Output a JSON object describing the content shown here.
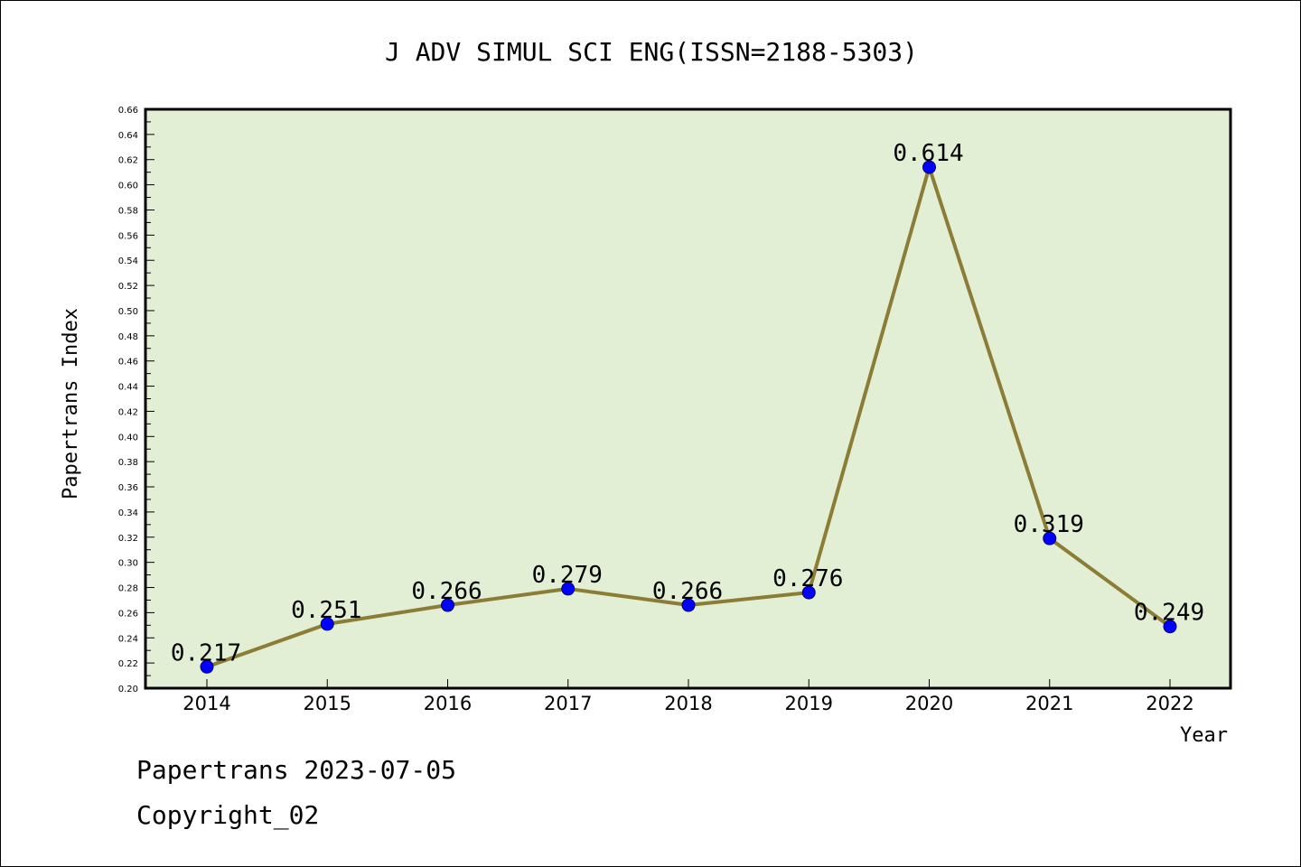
{
  "footer": {
    "line1": "Papertrans 2023-07-05",
    "line2": "Copyright_02"
  },
  "colors": {
    "plot_bg": "#e2efd5",
    "line": "#8c7d36",
    "marker": "#0000ff"
  },
  "chart_data": {
    "type": "line",
    "title": "J ADV SIMUL SCI ENG(ISSN=2188-5303)",
    "xlabel": "Year",
    "ylabel": "Papertrans Index",
    "categories": [
      "2014",
      "2015",
      "2016",
      "2017",
      "2018",
      "2019",
      "2020",
      "2021",
      "2022"
    ],
    "values": [
      0.217,
      0.251,
      0.266,
      0.279,
      0.266,
      0.276,
      0.614,
      0.319,
      0.249
    ],
    "data_labels": [
      "0.217",
      "0.251",
      "0.266",
      "0.279",
      "0.266",
      "0.276",
      "0.614",
      "0.319",
      "0.249"
    ],
    "ylim": [
      0.2,
      0.66
    ],
    "yticks": [
      "0.20",
      "0.22",
      "0.24",
      "0.26",
      "0.28",
      "0.30",
      "0.32",
      "0.34",
      "0.36",
      "0.38",
      "0.40",
      "0.42",
      "0.44",
      "0.46",
      "0.48",
      "0.50",
      "0.52",
      "0.54",
      "0.56",
      "0.58",
      "0.60",
      "0.62",
      "0.64",
      "0.66"
    ],
    "grid": false,
    "legend": "none"
  }
}
